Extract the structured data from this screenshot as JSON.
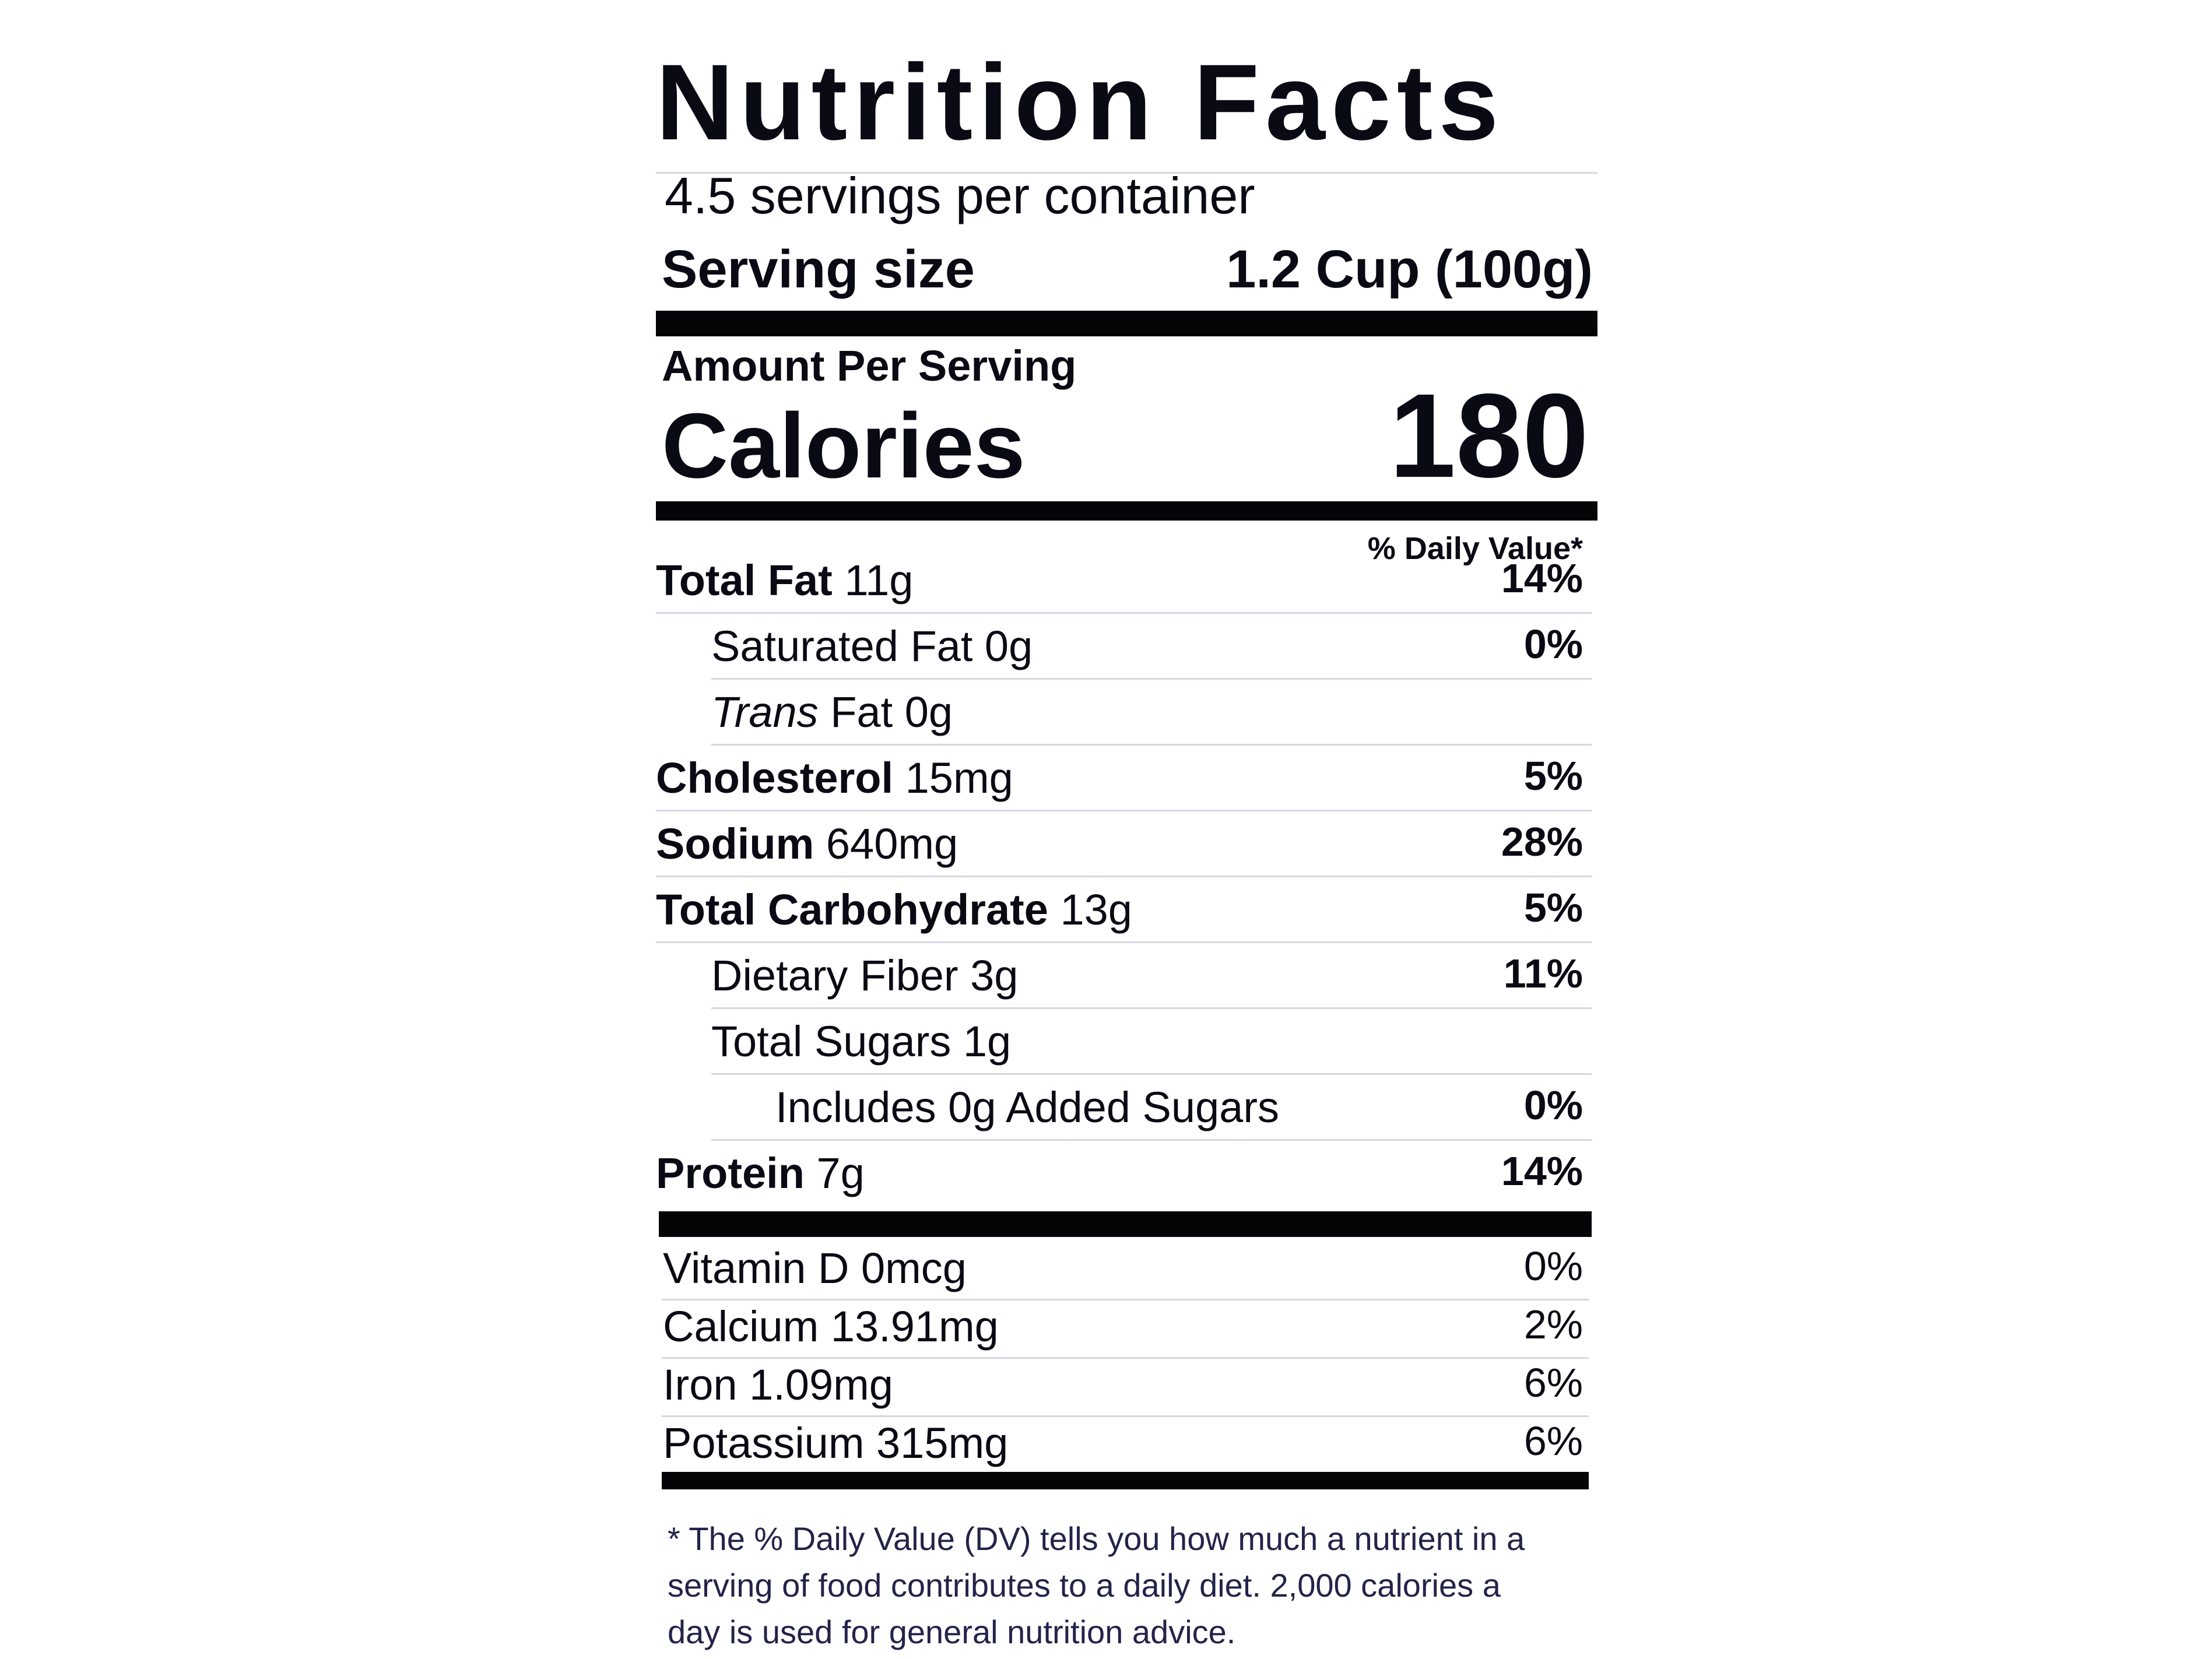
{
  "title": "Nutrition Facts",
  "servings_per_container": "4.5 servings per container",
  "serving_size_label": "Serving size",
  "serving_size_value": "1.2 Cup (100g)",
  "amount_per_serving": "Amount Per Serving",
  "calories_label": "Calories",
  "calories_value": "180",
  "daily_value_header": "% Daily Value*",
  "nutrients": [
    {
      "name": "Total Fat",
      "amount": "11g",
      "dv": "14%",
      "bold": true,
      "indent": 0
    },
    {
      "name": "Saturated Fat",
      "amount": "0g",
      "dv": "0%",
      "bold": false,
      "indent": 1
    },
    {
      "name": "Trans",
      "name_rest": "Fat",
      "amount": "0g",
      "dv": "",
      "bold": false,
      "indent": 1,
      "italic_prefix": true
    },
    {
      "name": "Cholesterol",
      "amount": "15mg",
      "dv": "5%",
      "bold": true,
      "indent": 0
    },
    {
      "name": "Sodium",
      "amount": "640mg",
      "dv": "28%",
      "bold": true,
      "indent": 0
    },
    {
      "name": "Total Carbohydrate",
      "amount": "13g",
      "dv": "5%",
      "bold": true,
      "indent": 0
    },
    {
      "name": "Dietary Fiber",
      "amount": "3g",
      "dv": "11%",
      "bold": false,
      "indent": 1
    },
    {
      "name": "Total Sugars",
      "amount": "1g",
      "dv": "",
      "bold": false,
      "indent": 1
    },
    {
      "name": "Includes 0g Added Sugars",
      "amount": "",
      "dv": "0%",
      "bold": false,
      "indent": 2
    },
    {
      "name": "Protein",
      "amount": "7g",
      "dv": "14%",
      "bold": true,
      "indent": 0
    }
  ],
  "vitamins": [
    {
      "name": "Vitamin D",
      "amount": "0mcg",
      "dv": "0%"
    },
    {
      "name": "Calcium",
      "amount": "13.91mg",
      "dv": "2%"
    },
    {
      "name": "Iron",
      "amount": "1.09mg",
      "dv": "6%"
    },
    {
      "name": "Potassium",
      "amount": "315mg",
      "dv": "6%"
    }
  ],
  "footnote": "* The % Daily Value (DV) tells you how much a nutrient in a serving of food contributes to a daily diet. 2,000 calories a day is used for general nutrition advice."
}
